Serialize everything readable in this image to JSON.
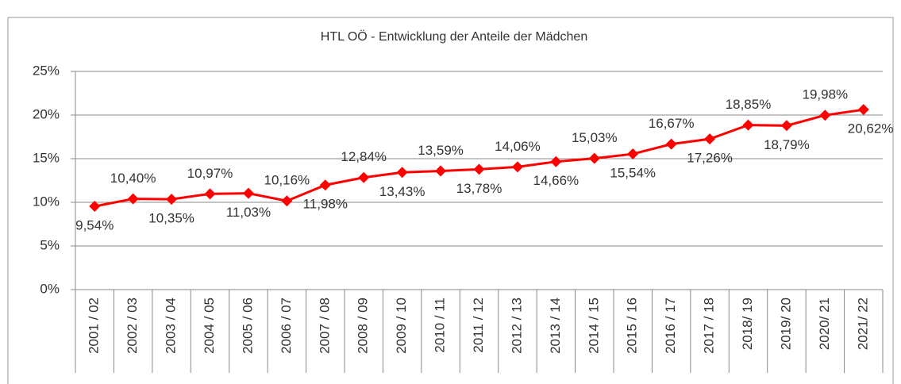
{
  "chart_data": {
    "type": "line",
    "title": "HTL OÖ - Entwicklung der Anteile der Mädchen",
    "categories": [
      "2001 / 02",
      "2002 / 03",
      "2003 / 04",
      "2004 / 05",
      "2005 / 06",
      "2006 / 07",
      "2007 / 08",
      "2008 / 09",
      "2009 / 10",
      "2010 / 11",
      "2011 / 12",
      "2012 / 13",
      "2013 / 14",
      "2014 / 15",
      "2015 / 16",
      "2016 / 17",
      "2017 / 18",
      "2018/ 19",
      "2019/ 20",
      "2020/ 21",
      "2021/ 22"
    ],
    "values": [
      9.54,
      10.4,
      10.35,
      10.97,
      11.03,
      10.16,
      11.98,
      12.84,
      13.43,
      13.59,
      13.78,
      14.06,
      14.66,
      15.03,
      15.54,
      16.67,
      17.26,
      18.85,
      18.79,
      19.98,
      20.62
    ],
    "value_labels": [
      "9,54%",
      "10,40%",
      "10,35%",
      "10,97%",
      "11,03%",
      "10,16%",
      "11,98%",
      "12,84%",
      "13,43%",
      "13,59%",
      "13,78%",
      "14,06%",
      "14,66%",
      "15,03%",
      "15,54%",
      "16,67%",
      "17,26%",
      "18,85%",
      "18,79%",
      "19,98%",
      "20,62%"
    ],
    "color": "#ff0000",
    "ylim": [
      0,
      25
    ],
    "yticks": [
      {
        "value": 0,
        "label": "0%"
      },
      {
        "value": 5,
        "label": "5%"
      },
      {
        "value": 10,
        "label": "10%"
      },
      {
        "value": 15,
        "label": "15%"
      },
      {
        "value": 20,
        "label": "20%"
      },
      {
        "value": 25,
        "label": "25%"
      }
    ],
    "grid": true
  }
}
